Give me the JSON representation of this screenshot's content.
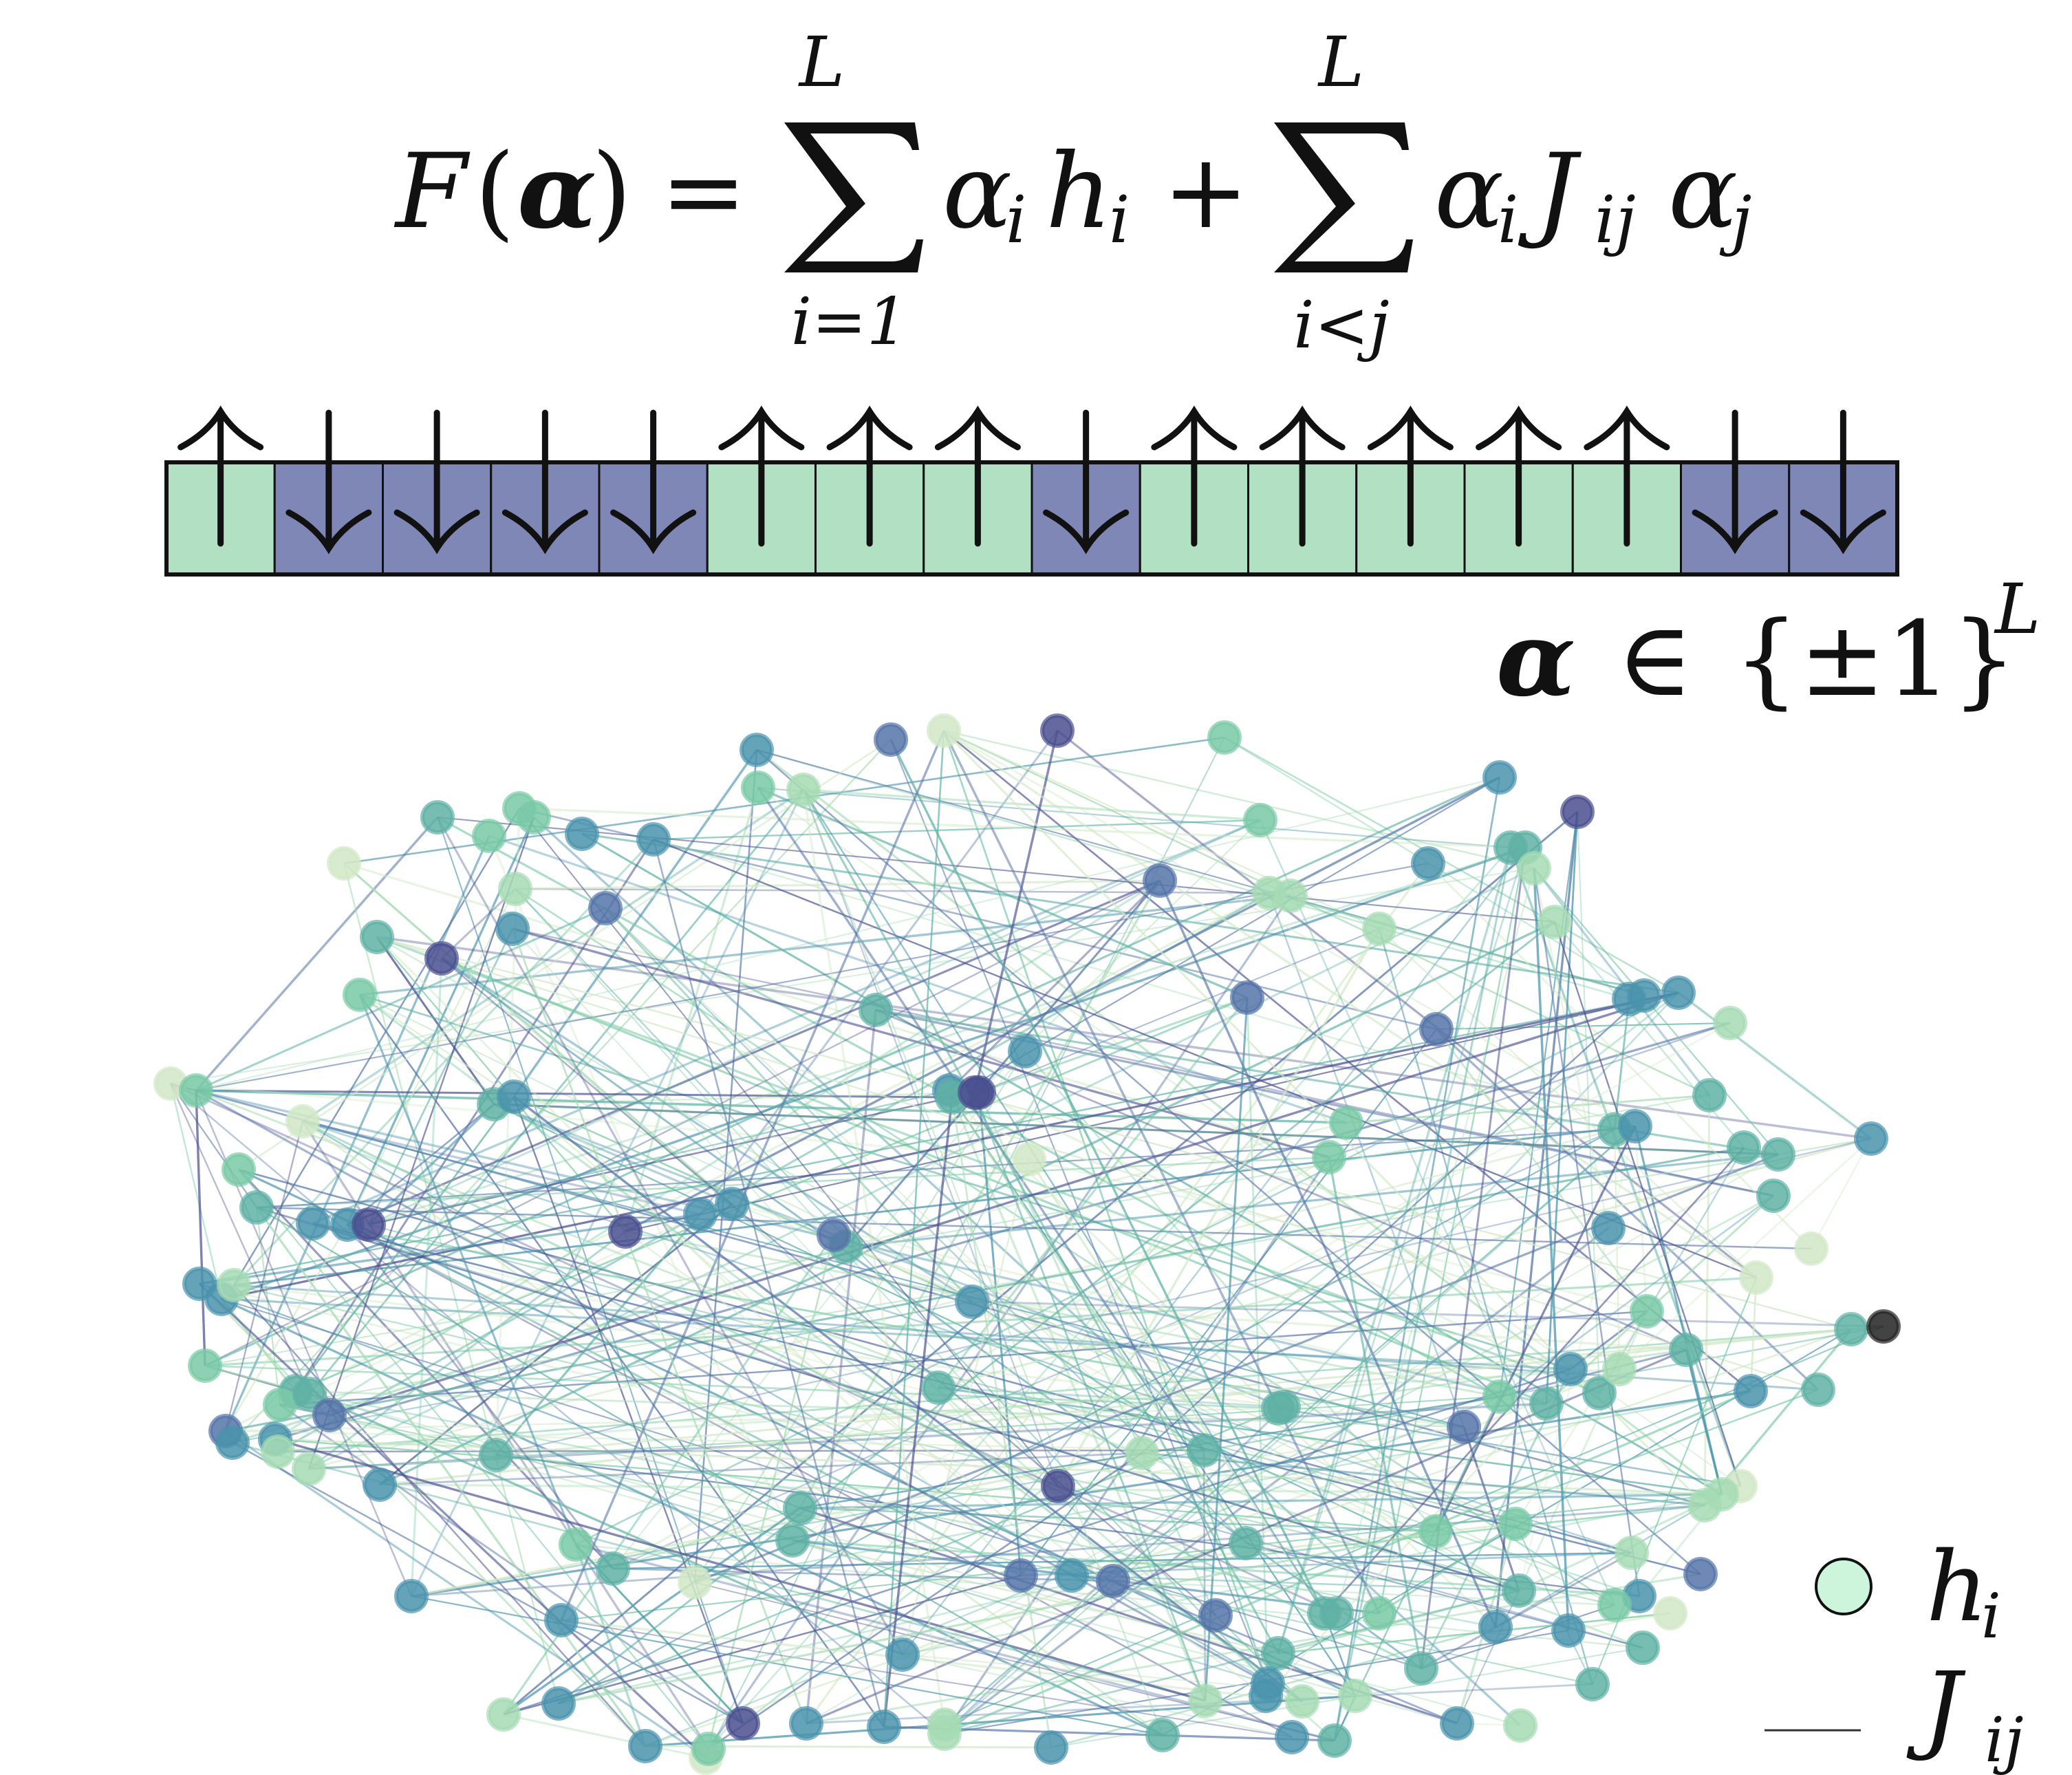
{
  "equation": {
    "lhs_F": "F",
    "lhs_arg": "α",
    "equals": "=",
    "sum1_upper": "L",
    "sum1_lower": "i=1",
    "term1_alpha": "α",
    "term1_alpha_sub": "i",
    "term1_h": "h",
    "term1_h_sub": "i",
    "plus": "+",
    "sum2_upper": "L",
    "sum2_lower": "i<j",
    "term2_alpha": "α",
    "term2_alpha_sub": "i",
    "term2_J": "J",
    "term2_J_sub": "ij",
    "term2_alpha_j": "α",
    "term2_alpha_j_sub": "j"
  },
  "spin_chain": {
    "states": [
      1,
      -1,
      -1,
      -1,
      -1,
      1,
      1,
      1,
      -1,
      1,
      1,
      1,
      1,
      1,
      -1,
      -1
    ],
    "up_color": "#b2e0c2",
    "down_color": "#7f87b7"
  },
  "domain_label": {
    "alpha": "α",
    "in": "∈",
    "set": "{±1}",
    "sup": "L"
  },
  "legend": {
    "node_label": "h",
    "node_label_sub": "i",
    "edge_label": "J",
    "edge_label_sub": "ij",
    "node_color": "#ccf5dc"
  },
  "graph": {
    "palette": [
      "#d2e8c6",
      "#a6dbb4",
      "#79c9a6",
      "#5fb1a5",
      "#4a93ad",
      "#5574a8",
      "#4a4f8f",
      "#222222"
    ]
  }
}
